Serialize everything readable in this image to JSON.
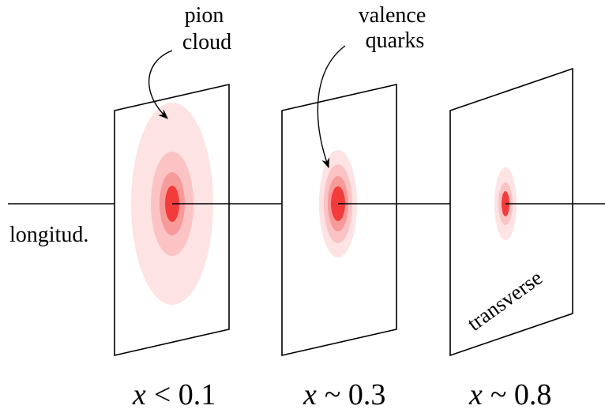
{
  "annotations": {
    "pion_cloud": [
      "pion",
      "cloud"
    ],
    "valence_quarks": [
      "valence",
      "quarks"
    ],
    "longitudinal": "longitud.",
    "transverse": "transverse"
  },
  "planes": [
    {
      "var": "x",
      "relation": "< 0.1"
    },
    {
      "var": "x",
      "relation": "~ 0.3"
    },
    {
      "var": "x",
      "relation": "~ 0.8"
    }
  ],
  "colors": {
    "ring_outer": "#fde3e3",
    "ring_mid": "#fbc3c3",
    "ring_inner": "#f79a9a",
    "core": "#f23c3c",
    "line": "#000000"
  }
}
